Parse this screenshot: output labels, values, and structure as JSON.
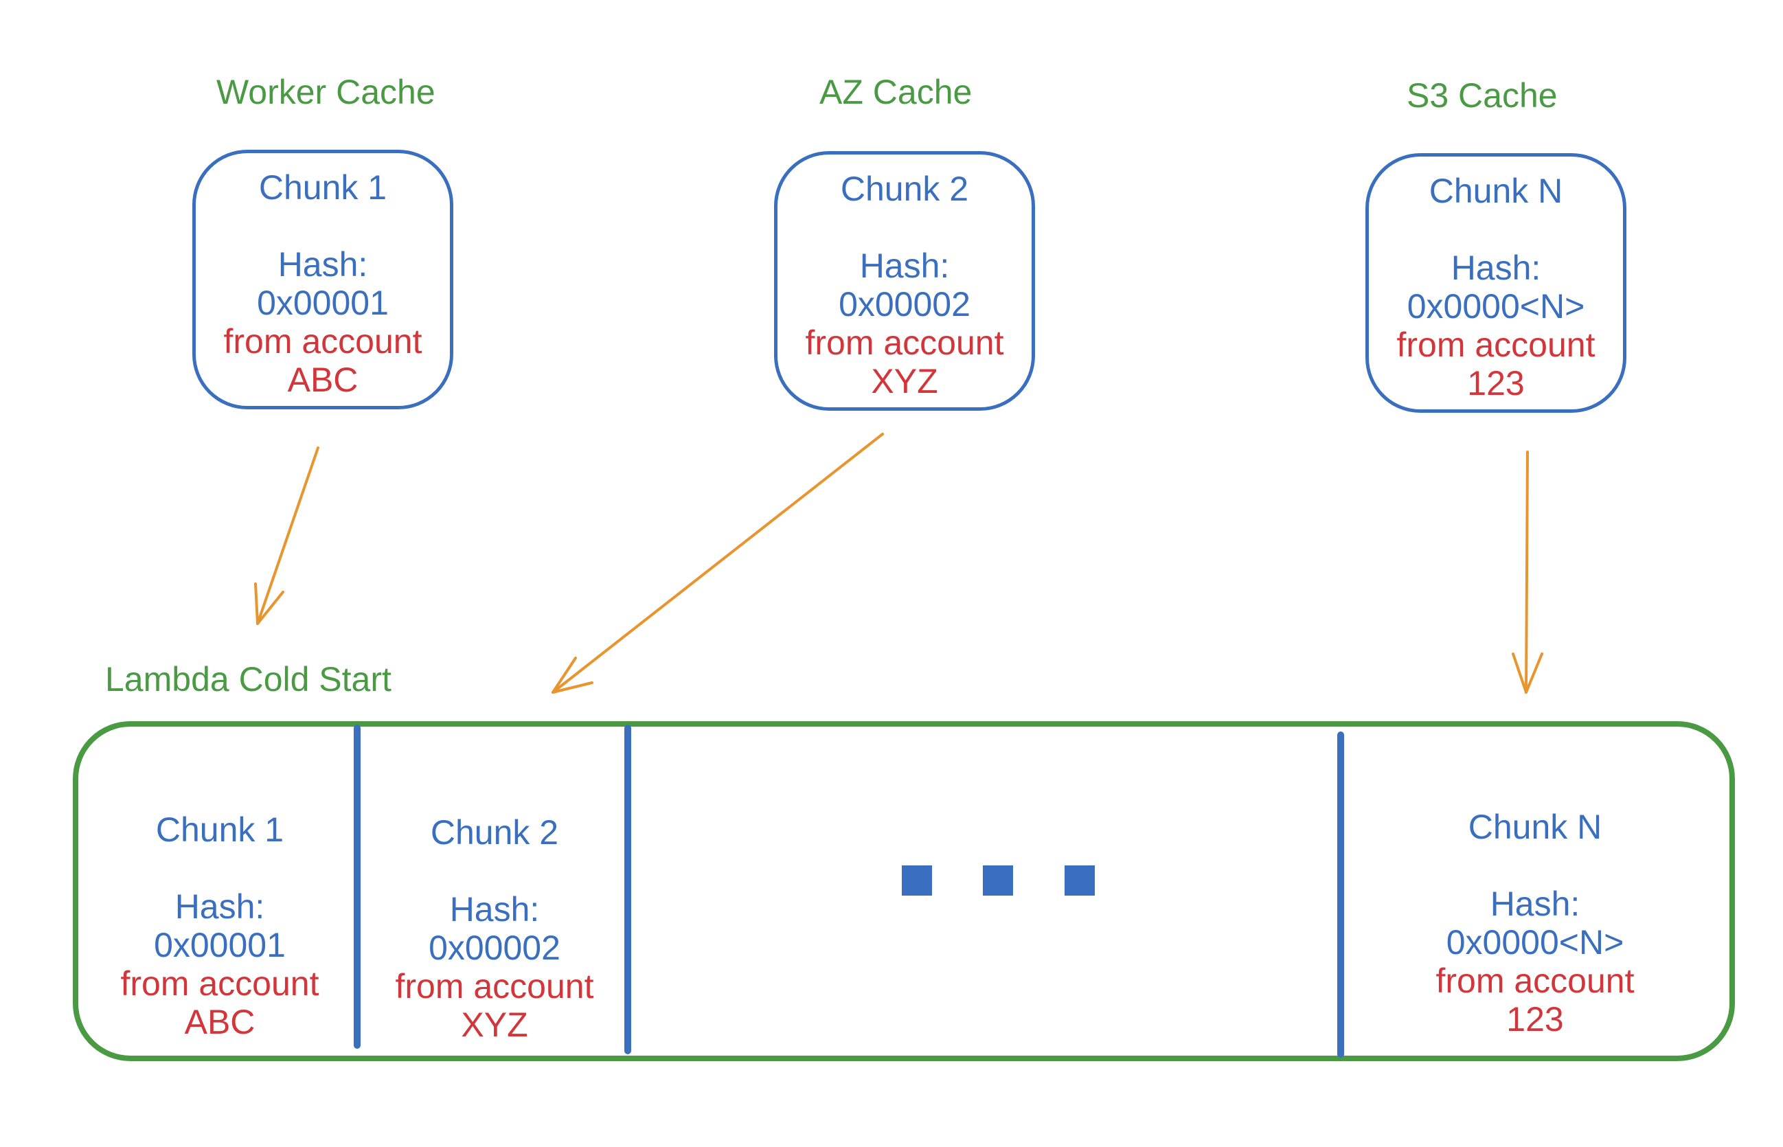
{
  "caches": [
    {
      "title": "Worker Cache",
      "chunk": "Chunk 1",
      "hash_label": "Hash:",
      "hash": "0x00001",
      "from": "from account",
      "account": "ABC"
    },
    {
      "title": "AZ Cache",
      "chunk": "Chunk 2",
      "hash_label": "Hash:",
      "hash": "0x00002",
      "from": "from account",
      "account": "XYZ"
    },
    {
      "title": "S3 Cache",
      "chunk": "Chunk N",
      "hash_label": "Hash:",
      "hash": "0x0000<N>",
      "from": "from account",
      "account": "123"
    }
  ],
  "lambda": {
    "title": "Lambda Cold Start",
    "cells": [
      {
        "chunk": "Chunk 1",
        "hash_label": "Hash:",
        "hash": "0x00001",
        "from": "from account",
        "account": "ABC"
      },
      {
        "chunk": "Chunk 2",
        "hash_label": "Hash:",
        "hash": "0x00002",
        "from": "from account",
        "account": "XYZ"
      },
      {
        "chunk": "Chunk N",
        "hash_label": "Hash:",
        "hash": "0x0000<N>",
        "from": "from account",
        "account": "123"
      }
    ]
  },
  "colors": {
    "green": "#4a9a44",
    "blue": "#3a6fc0",
    "red": "#d2363a",
    "orange": "#e8952e"
  }
}
